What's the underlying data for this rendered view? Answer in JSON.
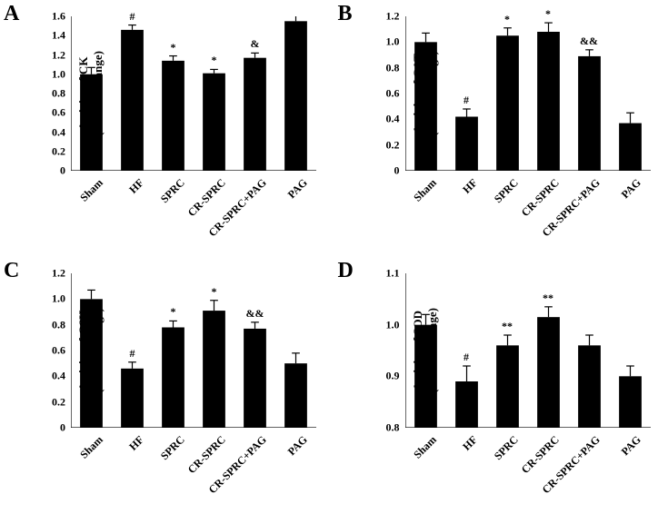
{
  "panels": {
    "A": {
      "letter": "A",
      "y_title_line1": "Activity of CK",
      "y_title_line2": "(Fold of Change)",
      "ylim": [
        0,
        1.6
      ],
      "ytick_step": 0.2,
      "categories": [
        "Sham",
        "HF",
        "SPRC",
        "CR-SPRC",
        "CR-SPRC+PAG",
        "PAG"
      ],
      "values": [
        1.0,
        1.46,
        1.14,
        1.01,
        1.17,
        1.55
      ],
      "errors": [
        0.07,
        0.05,
        0.05,
        0.04,
        0.05,
        0.08
      ],
      "sig": [
        "",
        "#",
        "*",
        "*",
        "&",
        ""
      ],
      "bar_color": "#000000",
      "background_color": "#ffffff",
      "axis_color": "#000000",
      "bar_width": 0.55,
      "tick_fontsize": 12,
      "title_fontsize": 13
    },
    "B": {
      "letter": "B",
      "y_title_line1": "Activity of CAT",
      "y_title_line2": "(Fold of Change)",
      "ylim": [
        0,
        1.2
      ],
      "ytick_step": 0.2,
      "categories": [
        "Sham",
        "HF",
        "SPRC",
        "CR-SPRC",
        "CR-SPRC+PAG",
        "PAG"
      ],
      "values": [
        1.0,
        0.42,
        1.05,
        1.08,
        0.89,
        0.37
      ],
      "errors": [
        0.07,
        0.06,
        0.06,
        0.07,
        0.05,
        0.08
      ],
      "sig": [
        "",
        "#",
        "*",
        "*",
        "&&",
        ""
      ],
      "bar_color": "#000000",
      "background_color": "#ffffff",
      "axis_color": "#000000",
      "bar_width": 0.55,
      "tick_fontsize": 12,
      "title_fontsize": 13
    },
    "C": {
      "letter": "C",
      "y_title_line1": "Activity of GSH",
      "y_title_line2": "(Fold of Change)",
      "ylim": [
        0,
        1.2
      ],
      "ytick_step": 0.2,
      "categories": [
        "Sham",
        "HF",
        "SPRC",
        "CR-SPRC",
        "CR-SPRC+PAG",
        "PAG"
      ],
      "values": [
        1.0,
        0.46,
        0.78,
        0.91,
        0.77,
        0.5
      ],
      "errors": [
        0.07,
        0.05,
        0.05,
        0.08,
        0.05,
        0.08
      ],
      "sig": [
        "",
        "#",
        "*",
        "*",
        "&&",
        ""
      ],
      "bar_color": "#000000",
      "background_color": "#ffffff",
      "axis_color": "#000000",
      "bar_width": 0.55,
      "tick_fontsize": 12,
      "title_fontsize": 13
    },
    "D": {
      "letter": "D",
      "y_title_line1": "Activity of SOD",
      "y_title_line2": "(Fold of Change)",
      "ylim": [
        0.8,
        1.1
      ],
      "ytick_step": 0.1,
      "categories": [
        "Sham",
        "HF",
        "SPRC",
        "CR-SPRC",
        "CR-SPRC+PAG",
        "PAG"
      ],
      "values": [
        1.0,
        0.89,
        0.96,
        1.015,
        0.96,
        0.9
      ],
      "errors": [
        0.02,
        0.03,
        0.02,
        0.02,
        0.02,
        0.02
      ],
      "sig": [
        "",
        "#",
        "**",
        "**",
        "",
        ""
      ],
      "bar_color": "#000000",
      "background_color": "#ffffff",
      "axis_color": "#000000",
      "bar_width": 0.55,
      "tick_fontsize": 12,
      "title_fontsize": 13
    }
  }
}
